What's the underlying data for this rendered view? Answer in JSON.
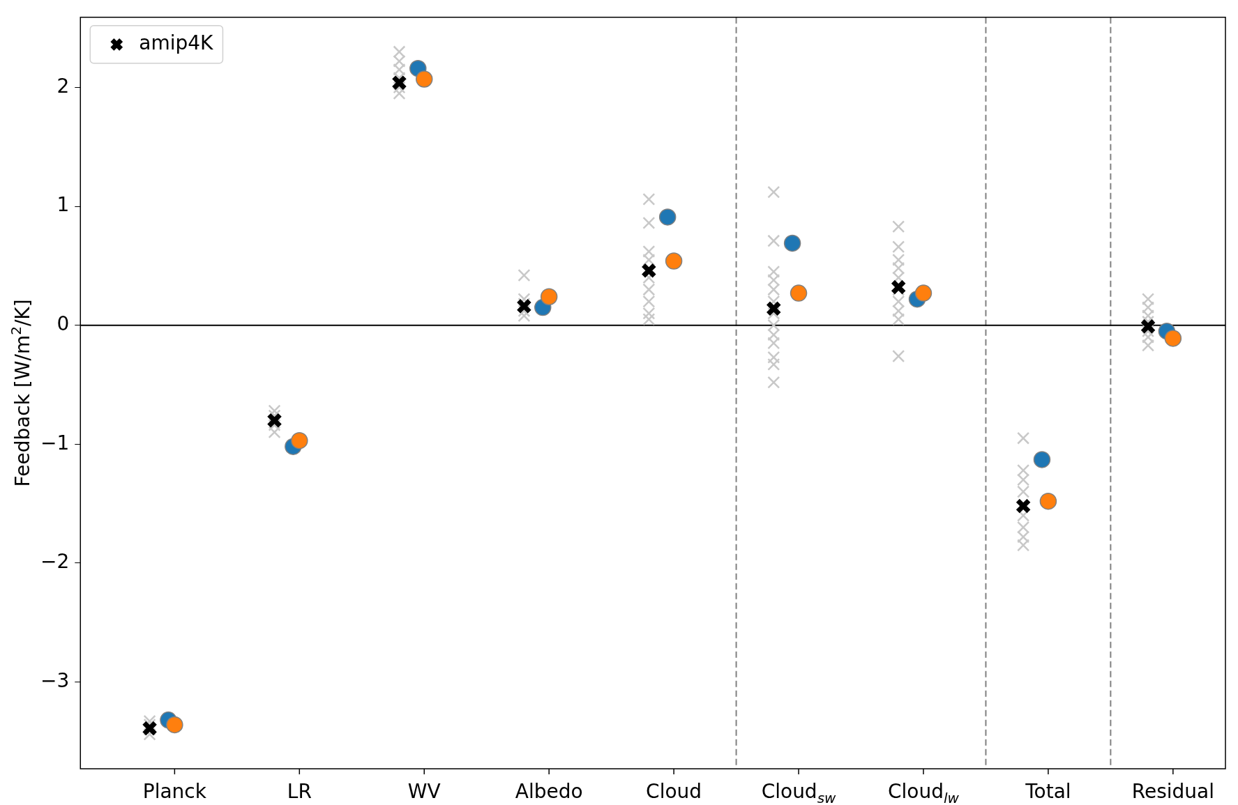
{
  "chart_data": {
    "type": "scatter",
    "ylabel": "Feedback [W/m$^{2}$/K]",
    "categories": [
      "Planck",
      "LR",
      "WV",
      "Albedo",
      "Cloud",
      "Cloud$_{sw}$",
      "Cloud$_{lw}$",
      "Total",
      "Residual"
    ],
    "ylim": [
      -3.73,
      2.59
    ],
    "yticks": [
      -3,
      -2,
      -1,
      0,
      1,
      2
    ],
    "grid": false,
    "legend": "top left",
    "ref_lines": [
      {
        "axis": "y",
        "value": 0,
        "color": "#000000",
        "line_style": "solid"
      }
    ],
    "series": [
      {
        "color": "#c8c8c8",
        "marker": "cross",
        "x": [
          "Planck",
          "Planck",
          "Planck",
          "Planck",
          "LR",
          "LR",
          "LR",
          "LR",
          "LR",
          "WV",
          "WV",
          "WV",
          "WV",
          "WV",
          "WV",
          "Albedo",
          "Albedo",
          "Albedo",
          "Albedo",
          "Albedo",
          "Cloud",
          "Cloud",
          "Cloud",
          "Cloud",
          "Cloud",
          "Cloud",
          "Cloud",
          "Cloud",
          "Cloud",
          "Cloud$_{sw}$",
          "Cloud$_{sw}$",
          "Cloud$_{sw}$",
          "Cloud$_{sw}$",
          "Cloud$_{sw}$",
          "Cloud$_{sw}$",
          "Cloud$_{sw}$",
          "Cloud$_{sw}$",
          "Cloud$_{sw}$",
          "Cloud$_{sw}$",
          "Cloud$_{sw}$",
          "Cloud$_{sw}$",
          "Cloud$_{sw}$",
          "Cloud$_{lw}$",
          "Cloud$_{lw}$",
          "Cloud$_{lw}$",
          "Cloud$_{lw}$",
          "Cloud$_{lw}$",
          "Cloud$_{lw}$",
          "Cloud$_{lw}$",
          "Cloud$_{lw}$",
          "Cloud$_{lw}$",
          "Cloud$_{lw}$",
          "Total",
          "Total",
          "Total",
          "Total",
          "Total",
          "Total",
          "Total",
          "Total",
          "Total",
          "Residual",
          "Residual",
          "Residual",
          "Residual",
          "Residual",
          "Residual",
          "Residual"
        ],
        "values": [
          -3.33,
          -3.36,
          -3.4,
          -3.44,
          -0.72,
          -0.76,
          null,
          -0.84,
          -0.9,
          1.95,
          2.0,
          2.08,
          2.15,
          2.22,
          2.3,
          0.42,
          0.22,
          0.18,
          0.12,
          0.08,
          1.06,
          0.86,
          0.62,
          0.55,
          0.4,
          0.3,
          0.2,
          0.1,
          0.05,
          1.12,
          0.71,
          0.45,
          0.38,
          0.3,
          0.2,
          0.1,
          0.0,
          -0.08,
          -0.15,
          -0.27,
          -0.33,
          -0.48,
          0.83,
          0.66,
          0.55,
          0.48,
          0.4,
          0.3,
          0.2,
          0.12,
          0.05,
          -0.26,
          -0.95,
          -1.22,
          -1.3,
          -1.4,
          null,
          -1.6,
          -1.7,
          -1.78,
          -1.85,
          0.22,
          0.15,
          0.08,
          0.03,
          -0.05,
          -0.1,
          -0.17
        ]
      },
      {
        "name": "amip4K",
        "color": "#000000",
        "marker": "cross",
        "values": [
          -3.39,
          -0.8,
          2.04,
          0.16,
          0.46,
          0.14,
          0.32,
          -1.52,
          -0.01
        ]
      },
      {
        "color": "#1f77b4",
        "marker": "circle",
        "values": [
          -3.32,
          -1.02,
          2.16,
          0.15,
          0.91,
          0.69,
          0.22,
          -1.13,
          -0.05
        ]
      },
      {
        "color": "#ff7f0e",
        "marker": "circle",
        "values": [
          -3.36,
          -0.97,
          2.07,
          0.24,
          0.54,
          0.27,
          0.27,
          -1.48,
          -0.11
        ]
      }
    ]
  }
}
